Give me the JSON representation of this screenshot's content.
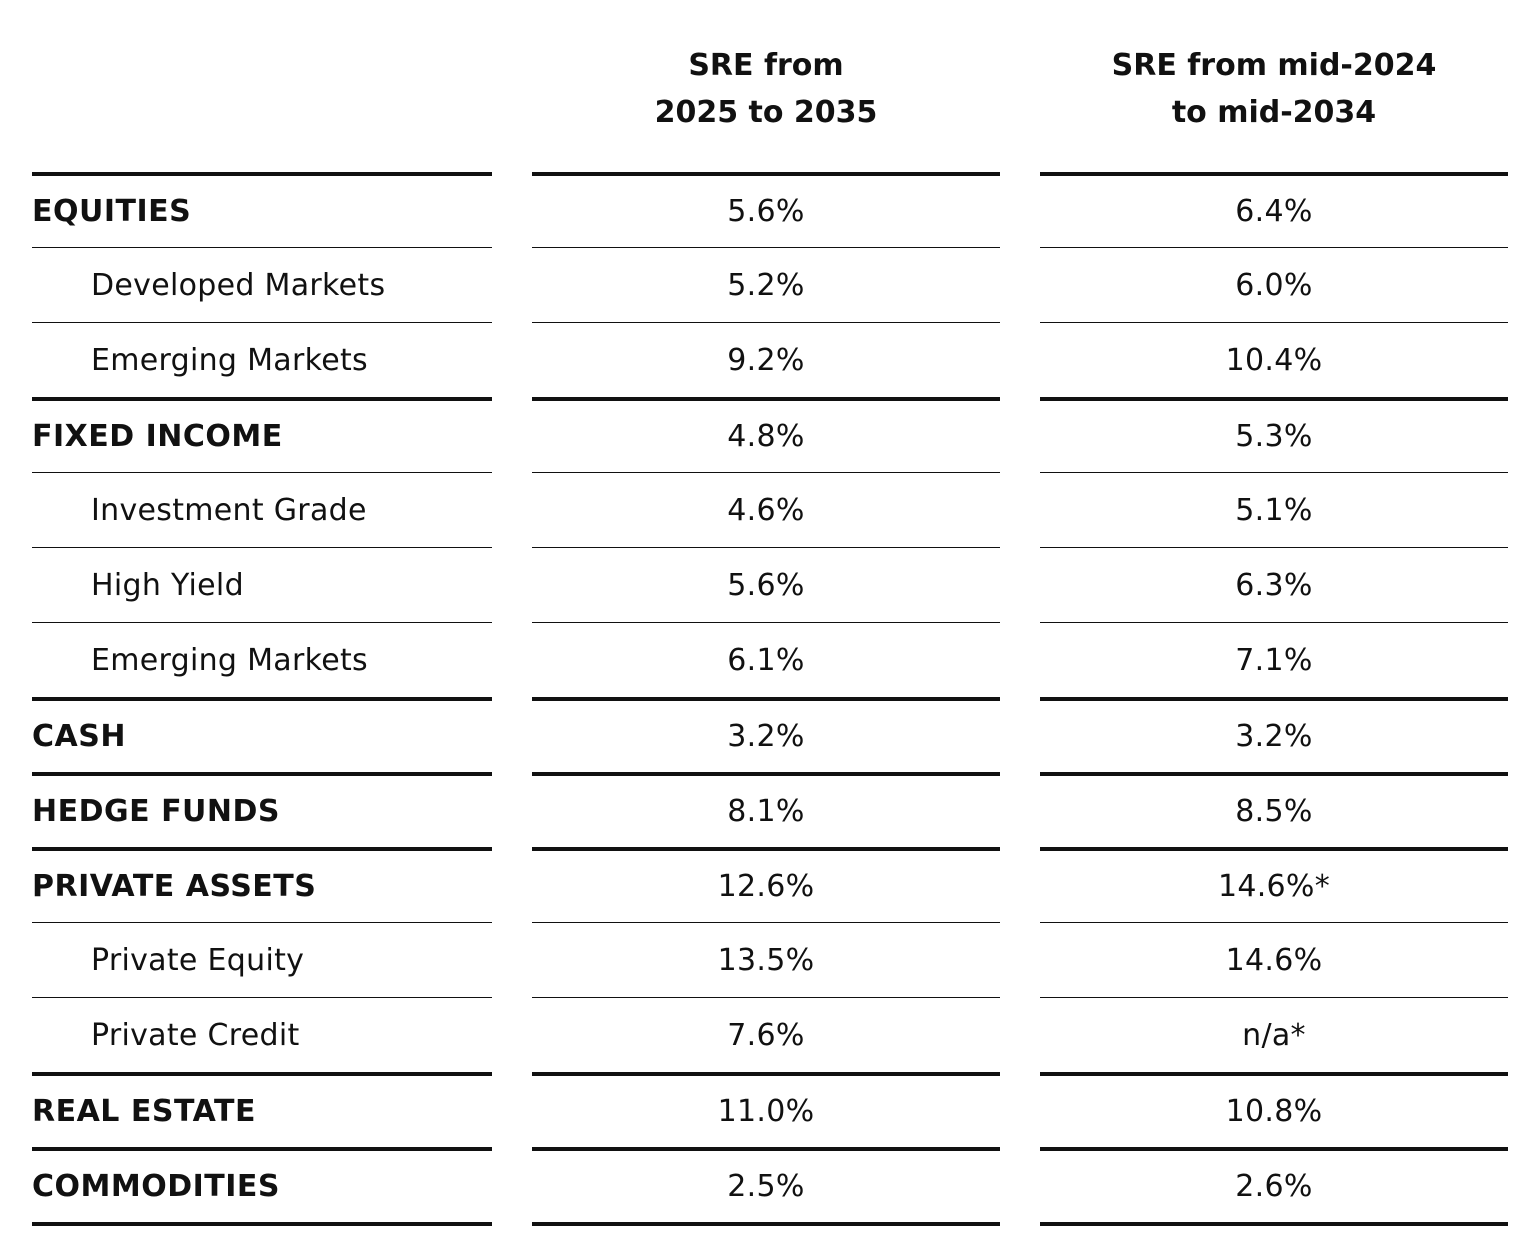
{
  "columns": {
    "col1": {
      "line1": "SRE from",
      "line2": "2025 to 2035"
    },
    "col2": {
      "line1": "SRE from mid-2024",
      "line2": "to mid-2034"
    }
  },
  "rows": [
    {
      "label": "EQUITIES",
      "v1": "5.6%",
      "v2": "6.4%",
      "level": "major"
    },
    {
      "label": "Developed Markets",
      "v1": "5.2%",
      "v2": "6.0%",
      "level": "minor"
    },
    {
      "label": "Emerging Markets",
      "v1": "9.2%",
      "v2": "10.4%",
      "level": "minor"
    },
    {
      "label": "FIXED INCOME",
      "v1": "4.8%",
      "v2": "5.3%",
      "level": "major"
    },
    {
      "label": "Investment Grade",
      "v1": "4.6%",
      "v2": "5.1%",
      "level": "minor"
    },
    {
      "label": "High Yield",
      "v1": "5.6%",
      "v2": "6.3%",
      "level": "minor"
    },
    {
      "label": "Emerging Markets",
      "v1": "6.1%",
      "v2": "7.1%",
      "level": "minor"
    },
    {
      "label": "CASH",
      "v1": "3.2%",
      "v2": "3.2%",
      "level": "major"
    },
    {
      "label": "HEDGE FUNDS",
      "v1": "8.1%",
      "v2": "8.5%",
      "level": "major"
    },
    {
      "label": "PRIVATE ASSETS",
      "v1": "12.6%",
      "v2": "14.6%*",
      "level": "major"
    },
    {
      "label": "Private Equity",
      "v1": "13.5%",
      "v2": "14.6%",
      "level": "minor"
    },
    {
      "label": "Private Credit",
      "v1": "7.6%",
      "v2": "n/a*",
      "level": "minor"
    },
    {
      "label": "REAL ESTATE",
      "v1": "11.0%",
      "v2": "10.8%",
      "level": "major"
    },
    {
      "label": "COMMODITIES",
      "v1": "2.5%",
      "v2": "2.6%",
      "level": "major"
    }
  ]
}
